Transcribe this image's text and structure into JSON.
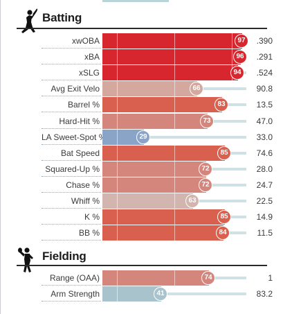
{
  "colors": {
    "elite": "#d8262f",
    "strong": "#d9604e",
    "good": "#d4867c",
    "above_avg": "#d4a79f",
    "avg": "#d2b5ae",
    "below": "#8aa4c8",
    "low": "#a8c3cc",
    "track": "#cfe1e4"
  },
  "batting": {
    "title": "Batting",
    "icon": "batter-icon",
    "rows": [
      {
        "label": "xwOBA",
        "percentile": "97",
        "value": ".390",
        "tone": "elite"
      },
      {
        "label": "xBA",
        "percentile": "96",
        "value": ".291",
        "tone": "elite"
      },
      {
        "label": "xSLG",
        "percentile": "94",
        "value": ".524",
        "tone": "elite"
      },
      {
        "label": "Avg Exit Velo",
        "percentile": "66",
        "value": "90.8",
        "tone": "above_avg"
      },
      {
        "label": "Barrel %",
        "percentile": "83",
        "value": "13.5",
        "tone": "strong"
      },
      {
        "label": "Hard-Hit %",
        "percentile": "73",
        "value": "47.0",
        "tone": "good"
      },
      {
        "label": "LA Sweet-Spot %",
        "percentile": "29",
        "value": "33.0",
        "tone": "below"
      },
      {
        "label": "Bat Speed",
        "percentile": "85",
        "value": "74.6",
        "tone": "strong"
      },
      {
        "label": "Squared-Up %",
        "percentile": "72",
        "value": "28.0",
        "tone": "good"
      },
      {
        "label": "Chase %",
        "percentile": "72",
        "value": "24.7",
        "tone": "good"
      },
      {
        "label": "Whiff %",
        "percentile": "63",
        "value": "22.5",
        "tone": "avg"
      },
      {
        "label": "K %",
        "percentile": "85",
        "value": "14.9",
        "tone": "strong"
      },
      {
        "label": "BB %",
        "percentile": "84",
        "value": "11.5",
        "tone": "strong"
      }
    ]
  },
  "fielding": {
    "title": "Fielding",
    "icon": "fielder-icon",
    "rows": [
      {
        "label": "Range (OAA)",
        "percentile": "74",
        "value": "1",
        "tone": "good"
      },
      {
        "label": "Arm Strength",
        "percentile": "41",
        "value": "83.2",
        "tone": "low"
      }
    ]
  }
}
